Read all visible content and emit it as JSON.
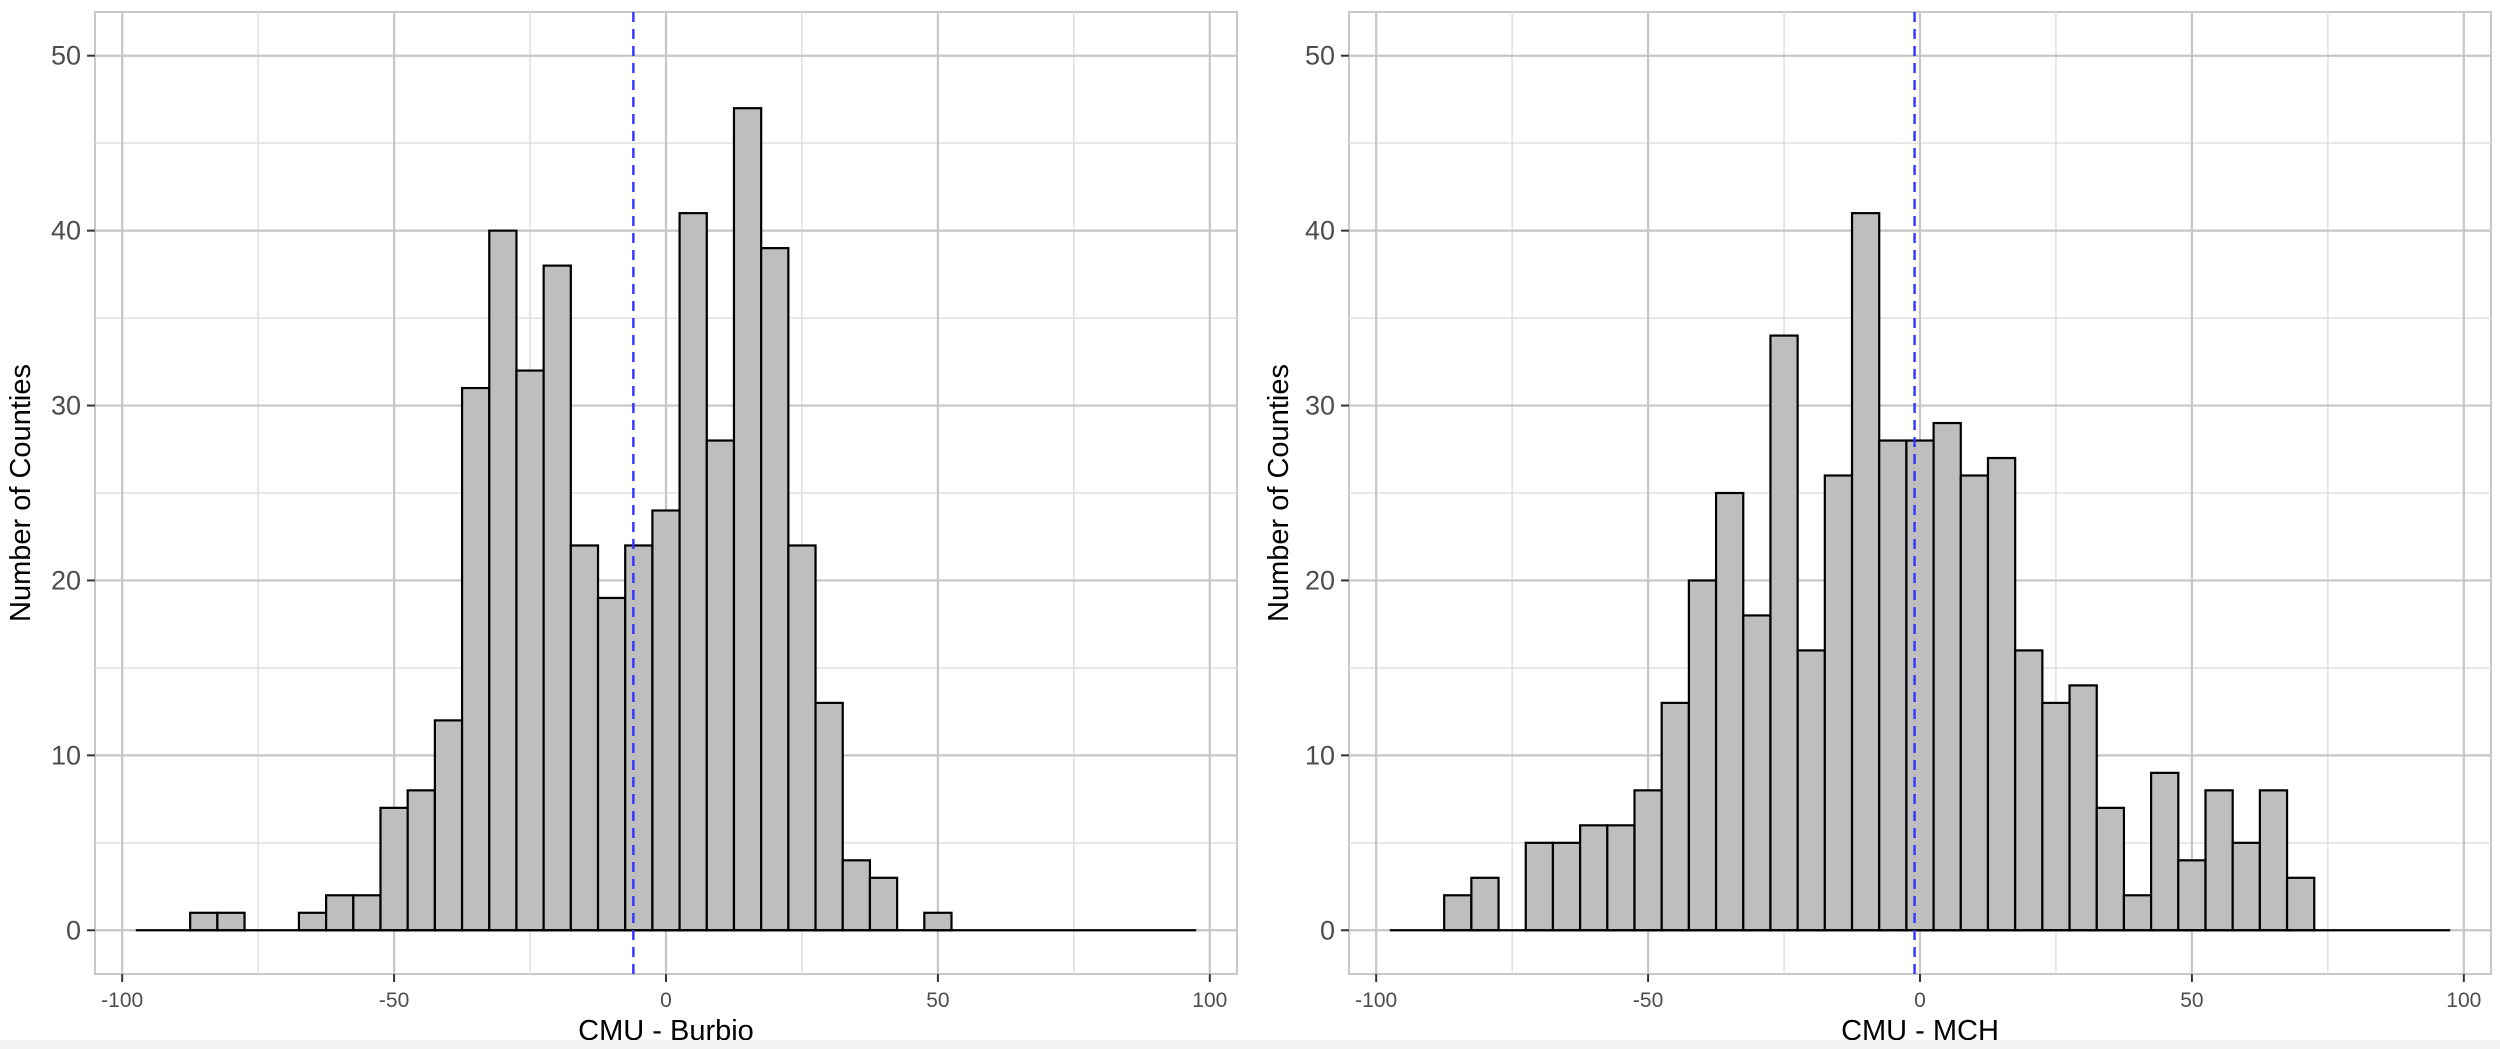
{
  "chart_data": [
    {
      "type": "bar",
      "subtype": "histogram",
      "xlabel": "CMU - Burbio",
      "ylabel": "Number of Counties",
      "xlim": [
        -105,
        105
      ],
      "ylim": [
        -2.5,
        52.5
      ],
      "x_ticks": [
        -100,
        -50,
        0,
        50,
        100
      ],
      "y_ticks": [
        0,
        10,
        20,
        30,
        40,
        50
      ],
      "bin_width": 5,
      "bin_start": -97.5,
      "bin_end": 97.5,
      "values": [
        0,
        0,
        1,
        1,
        0,
        0,
        1,
        2,
        2,
        7,
        8,
        12,
        31,
        40,
        32,
        38,
        22,
        19,
        22,
        24,
        41,
        28,
        47,
        39,
        22,
        13,
        4,
        3,
        0,
        1,
        0,
        0,
        0,
        0,
        0,
        0,
        0,
        0,
        0
      ],
      "reference_line": {
        "x": -6,
        "style": "dashed",
        "color": "#3333ff"
      },
      "grid": true,
      "bar_fill": "#bebebe",
      "bar_stroke": "#000000"
    },
    {
      "type": "bar",
      "subtype": "histogram",
      "xlabel": "CMU - MCH",
      "ylabel": "Number of Counties",
      "xlim": [
        -105,
        105
      ],
      "ylim": [
        -2.5,
        52.5
      ],
      "x_ticks": [
        -100,
        -50,
        0,
        50,
        100
      ],
      "y_ticks": [
        0,
        10,
        20,
        30,
        40,
        50
      ],
      "bin_width": 5,
      "bin_start": -97.5,
      "bin_end": 97.5,
      "values": [
        0,
        0,
        2,
        3,
        0,
        5,
        5,
        6,
        6,
        8,
        13,
        20,
        25,
        18,
        34,
        16,
        26,
        41,
        28,
        28,
        29,
        26,
        27,
        16,
        13,
        14,
        7,
        2,
        9,
        4,
        8,
        5,
        8,
        3,
        0,
        0,
        0,
        0,
        0
      ],
      "reference_line": {
        "x": -1,
        "style": "dashed",
        "color": "#3333ff"
      },
      "grid": true,
      "bar_fill": "#bebebe",
      "bar_stroke": "#000000"
    }
  ]
}
